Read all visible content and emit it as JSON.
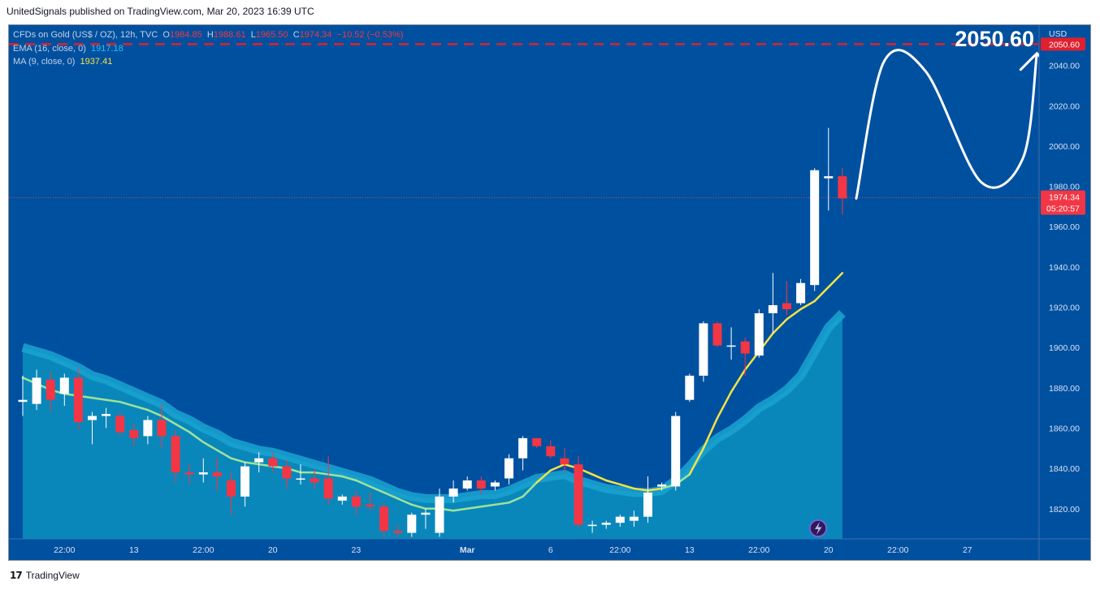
{
  "header": {
    "published_by": "UnitedSignals published on TradingView.com, Mar 20, 2023 16:39 UTC"
  },
  "legend": {
    "symbol": "CFDs on Gold (US$ / OZ), 12h, TVC",
    "open_label": "O",
    "open": "1984.85",
    "high_label": "H",
    "high": "1988.61",
    "low_label": "L",
    "low": "1965.50",
    "close_label": "C",
    "close": "1974.34",
    "change": "−10.52 (−0.53%)",
    "ema_label": "EMA (16, close, 0)",
    "ema_value": "1917.18",
    "ma_label": "MA (9, close, 0)",
    "ma_value": "1937.41"
  },
  "footer": {
    "brand": "TradingView"
  },
  "colors": {
    "background": "#0050a0",
    "bull_body": "#ffffff",
    "bear_body": "#f23645",
    "ema_fill": "#0a87ba",
    "ema_band": "#1aa3d1",
    "ma_line_above": "#f5e342",
    "ma_line_below": "#9ee39a",
    "target_line": "#e0202e",
    "current_line": "#d0434f"
  },
  "chart_data": {
    "type": "candlestick",
    "title": "CFDs on Gold (US$ / OZ), 12h, TVC",
    "currency_label": "USD",
    "y_ticks": [
      1820,
      1840,
      1860,
      1880,
      1900,
      1920,
      1940,
      1960,
      1980,
      2000,
      2020,
      2040
    ],
    "y_tick_labels": [
      "1820.00",
      "1840.00",
      "1860.00",
      "1880.00",
      "1900.00",
      "1920.00",
      "1940.00",
      "1960.00",
      "1980.00",
      "2000.00",
      "2020.00",
      "2040.00"
    ],
    "ylim": [
      1805,
      2060
    ],
    "x_ticks": [
      {
        "index": 3,
        "label": "22:00"
      },
      {
        "index": 8,
        "label": "13"
      },
      {
        "index": 13,
        "label": "22:00"
      },
      {
        "index": 18,
        "label": "20"
      },
      {
        "index": 24,
        "label": "23"
      },
      {
        "index": 32,
        "label": "Mar"
      },
      {
        "index": 38,
        "label": "6"
      },
      {
        "index": 43,
        "label": "22:00"
      },
      {
        "index": 48,
        "label": "13"
      },
      {
        "index": 53,
        "label": "22:00"
      },
      {
        "index": 58,
        "label": "20"
      },
      {
        "index": 63,
        "label": "22:00"
      },
      {
        "index": 68,
        "label": "27"
      }
    ],
    "candles": [
      {
        "o": 1873,
        "h": 1886,
        "l": 1866,
        "c": 1874
      },
      {
        "o": 1872,
        "h": 1889,
        "l": 1869,
        "c": 1885
      },
      {
        "o": 1884,
        "h": 1888,
        "l": 1868,
        "c": 1874
      },
      {
        "o": 1877,
        "h": 1887,
        "l": 1871,
        "c": 1885
      },
      {
        "o": 1885,
        "h": 1890,
        "l": 1859,
        "c": 1863
      },
      {
        "o": 1864,
        "h": 1868,
        "l": 1852,
        "c": 1866
      },
      {
        "o": 1866,
        "h": 1870,
        "l": 1860,
        "c": 1867
      },
      {
        "o": 1866,
        "h": 1868,
        "l": 1856,
        "c": 1858
      },
      {
        "o": 1859,
        "h": 1862,
        "l": 1851,
        "c": 1855
      },
      {
        "o": 1856,
        "h": 1866,
        "l": 1852,
        "c": 1864
      },
      {
        "o": 1864,
        "h": 1872,
        "l": 1850,
        "c": 1856
      },
      {
        "o": 1856,
        "h": 1859,
        "l": 1833,
        "c": 1838
      },
      {
        "o": 1838,
        "h": 1842,
        "l": 1832,
        "c": 1837
      },
      {
        "o": 1837,
        "h": 1845,
        "l": 1833,
        "c": 1838
      },
      {
        "o": 1838,
        "h": 1845,
        "l": 1829,
        "c": 1836
      },
      {
        "o": 1834,
        "h": 1838,
        "l": 1817,
        "c": 1826
      },
      {
        "o": 1826,
        "h": 1843,
        "l": 1821,
        "c": 1841
      },
      {
        "o": 1843,
        "h": 1848,
        "l": 1838,
        "c": 1845
      },
      {
        "o": 1845,
        "h": 1848,
        "l": 1838,
        "c": 1841
      },
      {
        "o": 1841,
        "h": 1844,
        "l": 1830,
        "c": 1835
      },
      {
        "o": 1835,
        "h": 1842,
        "l": 1832,
        "c": 1835
      },
      {
        "o": 1835,
        "h": 1840,
        "l": 1830,
        "c": 1833
      },
      {
        "o": 1835,
        "h": 1846,
        "l": 1822,
        "c": 1825
      },
      {
        "o": 1824,
        "h": 1827,
        "l": 1822,
        "c": 1826
      },
      {
        "o": 1826,
        "h": 1829,
        "l": 1817,
        "c": 1821
      },
      {
        "o": 1822,
        "h": 1828,
        "l": 1819,
        "c": 1821
      },
      {
        "o": 1821,
        "h": 1823,
        "l": 1806,
        "c": 1809
      },
      {
        "o": 1809,
        "h": 1812,
        "l": 1806,
        "c": 1808
      },
      {
        "o": 1808,
        "h": 1818,
        "l": 1806,
        "c": 1817
      },
      {
        "o": 1817,
        "h": 1820,
        "l": 1810,
        "c": 1818
      },
      {
        "o": 1808,
        "h": 1830,
        "l": 1806,
        "c": 1826
      },
      {
        "o": 1826,
        "h": 1834,
        "l": 1823,
        "c": 1830
      },
      {
        "o": 1830,
        "h": 1836,
        "l": 1829,
        "c": 1834
      },
      {
        "o": 1834,
        "h": 1836,
        "l": 1827,
        "c": 1830
      },
      {
        "o": 1831,
        "h": 1834,
        "l": 1829,
        "c": 1833
      },
      {
        "o": 1835,
        "h": 1847,
        "l": 1832,
        "c": 1845
      },
      {
        "o": 1845,
        "h": 1856,
        "l": 1839,
        "c": 1855
      },
      {
        "o": 1855,
        "h": 1855,
        "l": 1850,
        "c": 1851
      },
      {
        "o": 1851,
        "h": 1854,
        "l": 1845,
        "c": 1846
      },
      {
        "o": 1845,
        "h": 1850,
        "l": 1838,
        "c": 1842
      },
      {
        "o": 1842,
        "h": 1846,
        "l": 1811,
        "c": 1812
      },
      {
        "o": 1812,
        "h": 1814,
        "l": 1808,
        "c": 1812
      },
      {
        "o": 1812,
        "h": 1814,
        "l": 1810,
        "c": 1813
      },
      {
        "o": 1813,
        "h": 1817,
        "l": 1811,
        "c": 1816
      },
      {
        "o": 1814,
        "h": 1819,
        "l": 1811,
        "c": 1816
      },
      {
        "o": 1816,
        "h": 1836,
        "l": 1813,
        "c": 1828
      },
      {
        "o": 1831,
        "h": 1833,
        "l": 1829,
        "c": 1832
      },
      {
        "o": 1831,
        "h": 1868,
        "l": 1829,
        "c": 1866
      },
      {
        "o": 1874,
        "h": 1887,
        "l": 1873,
        "c": 1886
      },
      {
        "o": 1886,
        "h": 1913,
        "l": 1883,
        "c": 1912
      },
      {
        "o": 1912,
        "h": 1913,
        "l": 1900,
        "c": 1901
      },
      {
        "o": 1901,
        "h": 1910,
        "l": 1894,
        "c": 1901
      },
      {
        "o": 1903,
        "h": 1905,
        "l": 1886,
        "c": 1897
      },
      {
        "o": 1896,
        "h": 1919,
        "l": 1895,
        "c": 1917
      },
      {
        "o": 1917,
        "h": 1937,
        "l": 1907,
        "c": 1921
      },
      {
        "o": 1922,
        "h": 1933,
        "l": 1916,
        "c": 1919
      },
      {
        "o": 1922,
        "h": 1934,
        "l": 1921,
        "c": 1932
      },
      {
        "o": 1931,
        "h": 1989,
        "l": 1928,
        "c": 1988
      },
      {
        "o": 1984,
        "h": 2009,
        "l": 1968,
        "c": 1985
      },
      {
        "o": 1985,
        "h": 1989,
        "l": 1966,
        "c": 1974
      }
    ],
    "ema": [
      1900,
      1898,
      1896,
      1893,
      1890,
      1886,
      1884,
      1881,
      1878,
      1875,
      1872,
      1867,
      1864,
      1860,
      1857,
      1853,
      1851,
      1849,
      1848,
      1846,
      1844,
      1842,
      1840,
      1838,
      1836,
      1834,
      1831,
      1828,
      1826,
      1825,
      1825,
      1825,
      1826,
      1827,
      1827,
      1829,
      1832,
      1835,
      1836,
      1837,
      1834,
      1832,
      1830,
      1829,
      1828,
      1828,
      1829,
      1834,
      1841,
      1849,
      1855,
      1859,
      1864,
      1870,
      1874,
      1879,
      1886,
      1898,
      1910,
      1917
    ],
    "ma": [
      1885,
      1882,
      1879,
      1877,
      1876,
      1875,
      1874,
      1873,
      1871,
      1869,
      1866,
      1862,
      1858,
      1853,
      1849,
      1845,
      1843,
      1842,
      1841,
      1840,
      1838,
      1838,
      1837,
      1836,
      1834,
      1831,
      1828,
      1825,
      1822,
      1820,
      1820,
      1819,
      1820,
      1821,
      1822,
      1823,
      1826,
      1833,
      1839,
      1842,
      1840,
      1837,
      1834,
      1832,
      1830,
      1829,
      1830,
      1832,
      1837,
      1850,
      1865,
      1878,
      1889,
      1898,
      1907,
      1914,
      1919,
      1923,
      1930,
      1937
    ],
    "current_price": 1974.34,
    "current_price_label": "1974.34",
    "countdown": "05:20:57",
    "target_price": 2050.6,
    "target_label": "2050.60",
    "projection": [
      {
        "index": 60,
        "price": 1974
      },
      {
        "index": 62,
        "price": 2042
      },
      {
        "index": 65,
        "price": 2037
      },
      {
        "index": 69,
        "price": 1982
      },
      {
        "index": 72,
        "price": 1994
      },
      {
        "index": 73,
        "price": 2046
      }
    ]
  }
}
